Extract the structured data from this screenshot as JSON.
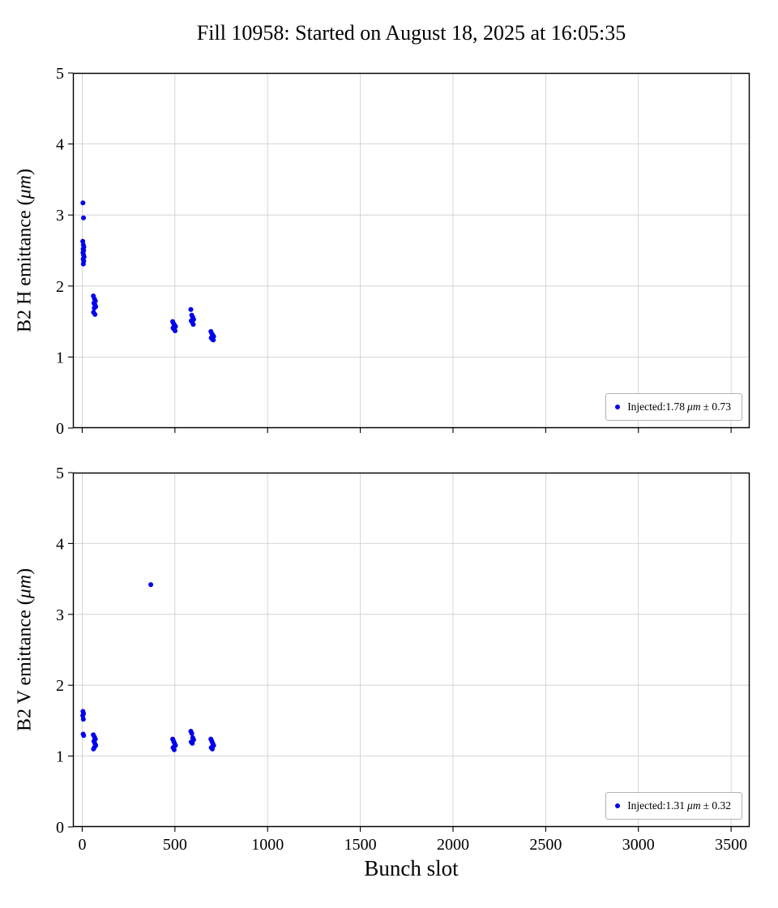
{
  "title": "Fill 10958: Started on August 18, 2025 at 16:05:35",
  "xlabel": "Bunch slot",
  "colors": {
    "point": "#0000ee",
    "grid": "#cccccc",
    "spine": "#000000",
    "legend_border": "#b3b3b3"
  },
  "chart_data": [
    {
      "type": "scatter",
      "ylabel_parts": [
        "B2 H emittance (",
        "μm",
        ")"
      ],
      "legend": {
        "before": "Injected:1.78",
        "italic": "μm",
        "after": "± 0.73"
      },
      "xlim": [
        -50,
        3600
      ],
      "ylim": [
        0,
        5
      ],
      "xticks": [
        0,
        500,
        1000,
        1500,
        2000,
        2500,
        3000,
        3500
      ],
      "yticks": [
        0,
        1,
        2,
        3,
        4,
        5
      ],
      "show_xticklabels": false,
      "points": [
        [
          4,
          3.17
        ],
        [
          7,
          2.96
        ],
        [
          3,
          2.63
        ],
        [
          6,
          2.58
        ],
        [
          9,
          2.55
        ],
        [
          5,
          2.52
        ],
        [
          8,
          2.5
        ],
        [
          4,
          2.47
        ],
        [
          7,
          2.44
        ],
        [
          10,
          2.41
        ],
        [
          5,
          2.38
        ],
        [
          8,
          2.35
        ],
        [
          6,
          2.31
        ],
        [
          60,
          1.86
        ],
        [
          66,
          1.82
        ],
        [
          71,
          1.79
        ],
        [
          63,
          1.76
        ],
        [
          68,
          1.74
        ],
        [
          73,
          1.71
        ],
        [
          65,
          1.69
        ],
        [
          61,
          1.63
        ],
        [
          69,
          1.6
        ],
        [
          488,
          1.5
        ],
        [
          493,
          1.47
        ],
        [
          498,
          1.45
        ],
        [
          503,
          1.43
        ],
        [
          490,
          1.41
        ],
        [
          496,
          1.39
        ],
        [
          501,
          1.37
        ],
        [
          586,
          1.67
        ],
        [
          591,
          1.59
        ],
        [
          596,
          1.56
        ],
        [
          601,
          1.53
        ],
        [
          588,
          1.51
        ],
        [
          594,
          1.49
        ],
        [
          599,
          1.46
        ],
        [
          694,
          1.36
        ],
        [
          699,
          1.33
        ],
        [
          704,
          1.31
        ],
        [
          709,
          1.29
        ],
        [
          696,
          1.27
        ],
        [
          702,
          1.25
        ],
        [
          707,
          1.24
        ]
      ]
    },
    {
      "type": "scatter",
      "ylabel_parts": [
        "B2 V emittance (",
        "μm",
        ")"
      ],
      "legend": {
        "before": "Injected:1.31",
        "italic": "μm",
        "after": "± 0.32"
      },
      "xlim": [
        -50,
        3600
      ],
      "ylim": [
        0,
        5
      ],
      "xticks": [
        0,
        500,
        1000,
        1500,
        2000,
        2500,
        3000,
        3500
      ],
      "yticks": [
        0,
        1,
        2,
        3,
        4,
        5
      ],
      "show_xticklabels": true,
      "points": [
        [
          370,
          3.42
        ],
        [
          4,
          1.63
        ],
        [
          7,
          1.6
        ],
        [
          3,
          1.57
        ],
        [
          6,
          1.52
        ],
        [
          5,
          1.31
        ],
        [
          8,
          1.29
        ],
        [
          60,
          1.3
        ],
        [
          66,
          1.27
        ],
        [
          71,
          1.24
        ],
        [
          63,
          1.21
        ],
        [
          68,
          1.18
        ],
        [
          73,
          1.15
        ],
        [
          65,
          1.12
        ],
        [
          61,
          1.1
        ],
        [
          488,
          1.24
        ],
        [
          493,
          1.21
        ],
        [
          498,
          1.18
        ],
        [
          503,
          1.15
        ],
        [
          490,
          1.12
        ],
        [
          496,
          1.09
        ],
        [
          586,
          1.35
        ],
        [
          591,
          1.32
        ],
        [
          596,
          1.26
        ],
        [
          601,
          1.23
        ],
        [
          588,
          1.2
        ],
        [
          594,
          1.18
        ],
        [
          694,
          1.24
        ],
        [
          699,
          1.21
        ],
        [
          704,
          1.18
        ],
        [
          709,
          1.15
        ],
        [
          696,
          1.12
        ],
        [
          702,
          1.1
        ]
      ]
    }
  ]
}
